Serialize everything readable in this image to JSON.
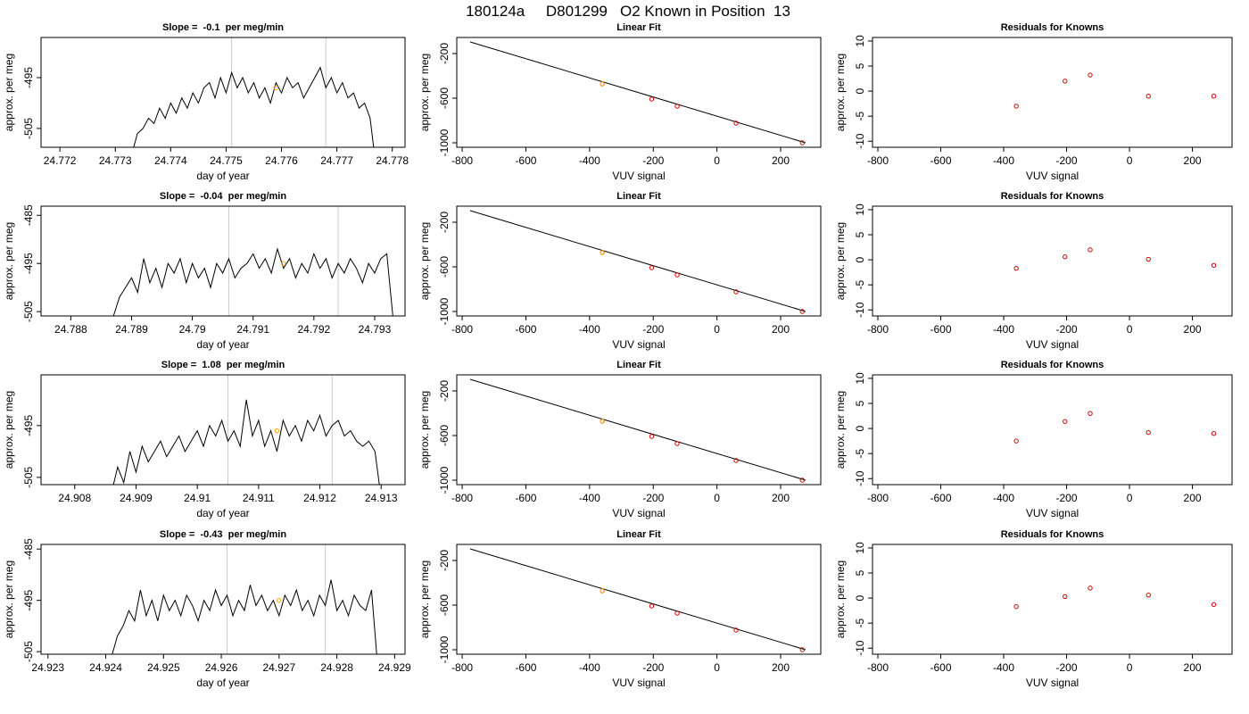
{
  "title": "180124a     D801299   O2 Known in Position  13",
  "chart_data": [
    {
      "type": "line",
      "title": "Slope =  -0.1  per meg/min",
      "xlabel": "day of year",
      "ylabel": "approx. per meg",
      "xlim": [
        24.77166,
        24.77823
      ],
      "xticks": [
        24.772,
        24.773,
        24.774,
        24.775,
        24.776,
        24.777,
        24.778
      ],
      "ylim": [
        -508.7,
        -487.1
      ],
      "yticks": [
        -505,
        -495
      ],
      "vlines": [
        24.7751,
        24.7768
      ],
      "vline_color": "#cccccc",
      "series": [
        {
          "style": "line",
          "color": "#000000",
          "x": [
            24.7733,
            24.7734,
            24.7735,
            24.7736,
            24.7737,
            24.7738,
            24.7739,
            24.774,
            24.7741,
            24.7742,
            24.7743,
            24.7744,
            24.7745,
            24.7746,
            24.7747,
            24.7748,
            24.7749,
            24.775,
            24.7751,
            24.7752,
            24.7753,
            24.7754,
            24.7755,
            24.7756,
            24.7757,
            24.7758,
            24.7759,
            24.776,
            24.7761,
            24.7762,
            24.7763,
            24.7764,
            24.7765,
            24.7766,
            24.7767,
            24.7768,
            24.7769,
            24.777,
            24.7771,
            24.7772,
            24.7773,
            24.7774,
            24.7775,
            24.7776,
            24.7777
          ],
          "values": [
            -510,
            -506,
            -505,
            -503,
            -504,
            -501,
            -503,
            -500,
            -502,
            -499,
            -501,
            -498,
            -500,
            -497,
            -496,
            -499,
            -495,
            -498,
            -494,
            -497,
            -495,
            -498,
            -496,
            -499,
            -497,
            -500,
            -496,
            -498,
            -495,
            -497,
            -496,
            -499,
            -497,
            -495,
            -493,
            -497,
            -495,
            -498,
            -496,
            -499,
            -498,
            -501,
            -500,
            -503,
            -512
          ]
        },
        {
          "style": "points",
          "color": "#ffa500",
          "x": [
            24.7759
          ],
          "values": [
            -497
          ]
        }
      ]
    },
    {
      "type": "scatter",
      "title": "Linear Fit",
      "xlabel": "VUV signal",
      "ylabel": "approx. per meg",
      "xlim": [
        -817,
        326
      ],
      "xticks": [
        -800,
        -600,
        -400,
        -200,
        0,
        200
      ],
      "ylim": [
        -1040,
        -56
      ],
      "yticks": [
        -1000,
        -600,
        -200
      ],
      "series": [
        {
          "style": "line",
          "color": "#000000",
          "x": [
            -775,
            278
          ],
          "values": [
            -96,
            -1000
          ]
        },
        {
          "style": "points",
          "color": "#cc0000",
          "x": [
            -360,
            -205,
            -125,
            60,
            268
          ],
          "values": [
            -472,
            -608,
            -672,
            -824,
            -1000
          ]
        },
        {
          "style": "points",
          "color": "#ffa500",
          "x": [
            -360
          ],
          "values": [
            -472
          ]
        }
      ]
    },
    {
      "type": "scatter",
      "title": "Residuals for Knowns",
      "xlabel": "VUV signal",
      "ylabel": "approx. per meg",
      "xlim": [
        -817,
        326
      ],
      "xticks": [
        -800,
        -600,
        -400,
        -200,
        0,
        200
      ],
      "ylim": [
        -11.2,
        10.7
      ],
      "yticks": [
        -10,
        -5,
        0,
        5,
        10
      ],
      "series": [
        {
          "style": "points",
          "color": "#cc0000",
          "x": [
            -360,
            -205,
            -125,
            60,
            268
          ],
          "values": [
            -3,
            2,
            3.2,
            -1,
            -1
          ]
        }
      ]
    },
    {
      "type": "line",
      "title": "Slope =  -0.04  per meg/min",
      "xlabel": "day of year",
      "ylabel": "approx. per meg",
      "xlim": [
        24.78751,
        24.7935
      ],
      "xticks": [
        24.788,
        24.789,
        24.79,
        24.791,
        24.792,
        24.793
      ],
      "ylim": [
        -505.9,
        -483.1
      ],
      "yticks": [
        -505,
        -495,
        -485
      ],
      "vlines": [
        24.7906,
        24.7924
      ],
      "vline_color": "#cccccc",
      "series": [
        {
          "style": "line",
          "color": "#000000",
          "x": [
            24.7887,
            24.7888,
            24.7889,
            24.789,
            24.7891,
            24.7892,
            24.7893,
            24.7894,
            24.7895,
            24.7896,
            24.7897,
            24.7898,
            24.7899,
            24.79,
            24.7901,
            24.7902,
            24.7903,
            24.7904,
            24.7905,
            24.7906,
            24.7907,
            24.7908,
            24.7909,
            24.791,
            24.7911,
            24.7912,
            24.7913,
            24.7914,
            24.7915,
            24.7916,
            24.7917,
            24.7918,
            24.7919,
            24.792,
            24.7921,
            24.7922,
            24.7923,
            24.7924,
            24.7925,
            24.7926,
            24.7927,
            24.7928,
            24.7929,
            24.793,
            24.7931,
            24.7932,
            24.7933
          ],
          "values": [
            -506,
            -502,
            -500,
            -498,
            -501,
            -494,
            -499,
            -496,
            -500,
            -495,
            -497,
            -494,
            -499,
            -495,
            -498,
            -496,
            -500,
            -495,
            -497,
            -494,
            -498,
            -496,
            -495,
            -493,
            -496,
            -494,
            -497,
            -492,
            -496,
            -494,
            -498,
            -495,
            -497,
            -493,
            -496,
            -494,
            -498,
            -495,
            -497,
            -494,
            -496,
            -499,
            -495,
            -497,
            -494,
            -493,
            -506
          ]
        },
        {
          "style": "points",
          "color": "#ffa500",
          "x": [
            24.7915
          ],
          "values": [
            -495
          ]
        }
      ]
    },
    {
      "type": "scatter",
      "title": "Linear Fit",
      "xlabel": "VUV signal",
      "ylabel": "approx. per meg",
      "xlim": [
        -817,
        326
      ],
      "xticks": [
        -800,
        -600,
        -400,
        -200,
        0,
        200
      ],
      "ylim": [
        -1040,
        -56
      ],
      "yticks": [
        -1000,
        -600,
        -200
      ],
      "series": [
        {
          "style": "line",
          "color": "#000000",
          "x": [
            -775,
            278
          ],
          "values": [
            -96,
            -1000
          ]
        },
        {
          "style": "points",
          "color": "#cc0000",
          "x": [
            -360,
            -205,
            -125,
            60,
            268
          ],
          "values": [
            -472,
            -608,
            -672,
            -824,
            -1000
          ]
        },
        {
          "style": "points",
          "color": "#ffa500",
          "x": [
            -360
          ],
          "values": [
            -472
          ]
        }
      ]
    },
    {
      "type": "scatter",
      "title": "Residuals for Knowns",
      "xlabel": "VUV signal",
      "ylabel": "approx. per meg",
      "xlim": [
        -817,
        326
      ],
      "xticks": [
        -800,
        -600,
        -400,
        -200,
        0,
        200
      ],
      "ylim": [
        -11.2,
        10.7
      ],
      "yticks": [
        -10,
        -5,
        0,
        5,
        10
      ],
      "series": [
        {
          "style": "points",
          "color": "#cc0000",
          "x": [
            -360,
            -205,
            -125,
            60,
            268
          ],
          "values": [
            -1.7,
            0.6,
            2,
            0.1,
            -1.1
          ]
        }
      ]
    },
    {
      "type": "line",
      "title": "Slope =  1.08  per meg/min",
      "xlabel": "day of year",
      "ylabel": "approx. per meg",
      "xlim": [
        24.90745,
        24.91339
      ],
      "xticks": [
        24.908,
        24.909,
        24.91,
        24.911,
        24.912,
        24.913
      ],
      "ylim": [
        -506.4,
        -485.2
      ],
      "yticks": [
        -505,
        -495
      ],
      "vlines": [
        24.9105,
        24.9122
      ],
      "vline_color": "#cccccc",
      "series": [
        {
          "style": "line",
          "color": "#000000",
          "x": [
            24.9086,
            24.9087,
            24.9088,
            24.9089,
            24.909,
            24.9091,
            24.9092,
            24.9093,
            24.9094,
            24.9095,
            24.9096,
            24.9097,
            24.9098,
            24.9099,
            24.91,
            24.9101,
            24.9102,
            24.9103,
            24.9104,
            24.9105,
            24.9106,
            24.9107,
            24.9108,
            24.9109,
            24.911,
            24.9111,
            24.9112,
            24.9113,
            24.9114,
            24.9115,
            24.9116,
            24.9117,
            24.9118,
            24.9119,
            24.912,
            24.9121,
            24.9122,
            24.9123,
            24.9124,
            24.9125,
            24.9126,
            24.9127,
            24.9128,
            24.9129,
            24.913
          ],
          "values": [
            -508,
            -503,
            -506,
            -500,
            -504,
            -499,
            -502,
            -500,
            -498,
            -501,
            -499,
            -497,
            -500,
            -498,
            -496,
            -499,
            -495,
            -497,
            -494,
            -498,
            -496,
            -499,
            -490,
            -497,
            -494,
            -499,
            -496,
            -500,
            -494,
            -497,
            -495,
            -498,
            -494,
            -496,
            -493,
            -497,
            -495,
            -494,
            -497,
            -496,
            -498,
            -499,
            -498,
            -500,
            -509
          ]
        },
        {
          "style": "points",
          "color": "#ffa500",
          "x": [
            24.9113
          ],
          "values": [
            -496
          ]
        }
      ]
    },
    {
      "type": "scatter",
      "title": "Linear Fit",
      "xlabel": "VUV signal",
      "ylabel": "approx. per meg",
      "xlim": [
        -817,
        326
      ],
      "xticks": [
        -800,
        -600,
        -400,
        -200,
        0,
        200
      ],
      "ylim": [
        -1040,
        -56
      ],
      "yticks": [
        -1000,
        -600,
        -200
      ],
      "series": [
        {
          "style": "line",
          "color": "#000000",
          "x": [
            -775,
            278
          ],
          "values": [
            -96,
            -1000
          ]
        },
        {
          "style": "points",
          "color": "#cc0000",
          "x": [
            -360,
            -205,
            -125,
            60,
            268
          ],
          "values": [
            -472,
            -608,
            -672,
            -824,
            -1000
          ]
        },
        {
          "style": "points",
          "color": "#ffa500",
          "x": [
            -360
          ],
          "values": [
            -472
          ]
        }
      ]
    },
    {
      "type": "scatter",
      "title": "Residuals for Knowns",
      "xlabel": "VUV signal",
      "ylabel": "approx. per meg",
      "xlim": [
        -817,
        326
      ],
      "xticks": [
        -800,
        -600,
        -400,
        -200,
        0,
        200
      ],
      "ylim": [
        -11.2,
        10.7
      ],
      "yticks": [
        -10,
        -5,
        0,
        5,
        10
      ],
      "series": [
        {
          "style": "points",
          "color": "#cc0000",
          "x": [
            -360,
            -205,
            -125,
            60,
            268
          ],
          "values": [
            -2.5,
            1.4,
            3,
            -0.8,
            -1
          ]
        }
      ]
    },
    {
      "type": "line",
      "title": "Slope =  -0.43  per meg/min",
      "xlabel": "day of year",
      "ylabel": "approx. per meg",
      "xlim": [
        24.92288,
        24.92918
      ],
      "xticks": [
        24.923,
        24.924,
        24.925,
        24.926,
        24.927,
        24.928,
        24.929
      ],
      "ylim": [
        -505.5,
        -484.1
      ],
      "yticks": [
        -505,
        -495,
        -485
      ],
      "vlines": [
        24.9261,
        24.9278
      ],
      "vline_color": "#cccccc",
      "series": [
        {
          "style": "line",
          "color": "#000000",
          "x": [
            24.9241,
            24.9242,
            24.9243,
            24.9244,
            24.9245,
            24.9246,
            24.9247,
            24.9248,
            24.9249,
            24.925,
            24.9251,
            24.9252,
            24.9253,
            24.9254,
            24.9255,
            24.9256,
            24.9257,
            24.9258,
            24.9259,
            24.926,
            24.9261,
            24.9262,
            24.9263,
            24.9264,
            24.9265,
            24.9266,
            24.9267,
            24.9268,
            24.9269,
            24.927,
            24.9271,
            24.9272,
            24.9273,
            24.9274,
            24.9275,
            24.9276,
            24.9277,
            24.9278,
            24.9279,
            24.928,
            24.9281,
            24.9282,
            24.9283,
            24.9284,
            24.9285,
            24.9286,
            24.9287
          ],
          "values": [
            -506,
            -502,
            -500,
            -497,
            -499,
            -493,
            -498,
            -495,
            -499,
            -494,
            -497,
            -495,
            -498,
            -494,
            -496,
            -499,
            -495,
            -497,
            -493,
            -496,
            -494,
            -498,
            -495,
            -497,
            -492,
            -496,
            -494,
            -497,
            -495,
            -498,
            -494,
            -496,
            -493,
            -497,
            -495,
            -498,
            -494,
            -496,
            -491,
            -497,
            -495,
            -498,
            -494,
            -496,
            -497,
            -493,
            -507
          ]
        },
        {
          "style": "points",
          "color": "#ffa500",
          "x": [
            24.927
          ],
          "values": [
            -495
          ]
        }
      ]
    },
    {
      "type": "scatter",
      "title": "Linear Fit",
      "xlabel": "VUV signal",
      "ylabel": "approx. per meg",
      "xlim": [
        -817,
        326
      ],
      "xticks": [
        -800,
        -600,
        -400,
        -200,
        0,
        200
      ],
      "ylim": [
        -1040,
        -56
      ],
      "yticks": [
        -1000,
        -600,
        -200
      ],
      "series": [
        {
          "style": "line",
          "color": "#000000",
          "x": [
            -775,
            278
          ],
          "values": [
            -96,
            -1000
          ]
        },
        {
          "style": "points",
          "color": "#cc0000",
          "x": [
            -360,
            -205,
            -125,
            60,
            268
          ],
          "values": [
            -472,
            -608,
            -672,
            -824,
            -1000
          ]
        },
        {
          "style": "points",
          "color": "#ffa500",
          "x": [
            -360
          ],
          "values": [
            -472
          ]
        }
      ]
    },
    {
      "type": "scatter",
      "title": "Residuals for Knowns",
      "xlabel": "VUV signal",
      "ylabel": "approx. per meg",
      "xlim": [
        -817,
        326
      ],
      "xticks": [
        -800,
        -600,
        -400,
        -200,
        0,
        200
      ],
      "ylim": [
        -11.2,
        10.7
      ],
      "yticks": [
        -10,
        -5,
        0,
        5,
        10
      ],
      "series": [
        {
          "style": "points",
          "color": "#cc0000",
          "x": [
            -360,
            -205,
            -125,
            60,
            268
          ],
          "values": [
            -1.7,
            0.3,
            2,
            0.6,
            -1.3
          ]
        }
      ]
    }
  ]
}
